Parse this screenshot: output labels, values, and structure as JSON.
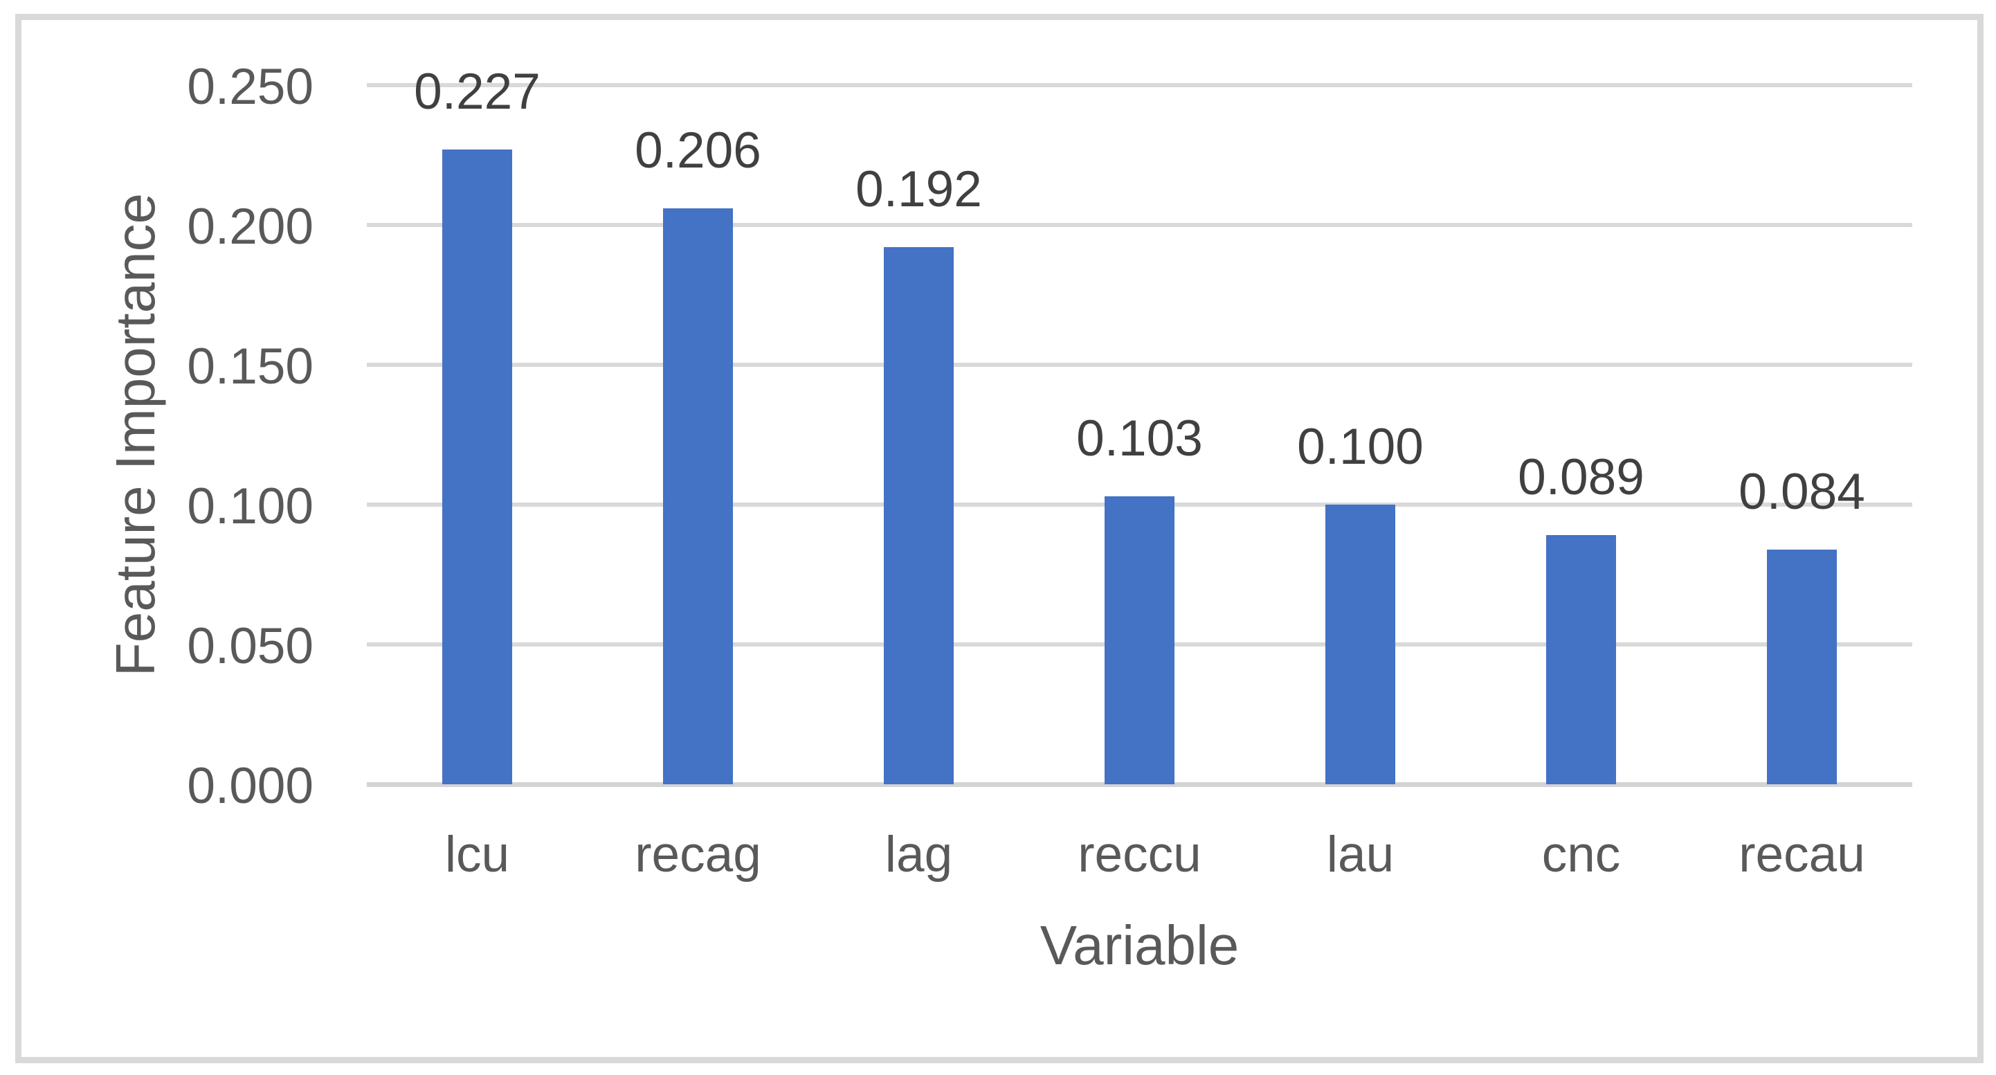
{
  "chart_data": {
    "type": "bar",
    "title": "",
    "xlabel": "Variable",
    "ylabel": "Feature Importance",
    "categories": [
      "lcu",
      "recag",
      "lag",
      "reccu",
      "lau",
      "cnc",
      "recau"
    ],
    "values": [
      0.227,
      0.206,
      0.192,
      0.103,
      0.1,
      0.089,
      0.084
    ],
    "data_labels": [
      "0.227",
      "0.206",
      "0.192",
      "0.103",
      "0.100",
      "0.089",
      "0.084"
    ],
    "ylim": [
      0,
      0.25
    ],
    "ytick_values": [
      0,
      0.05,
      0.1,
      0.15,
      0.2,
      0.25
    ],
    "ytick_labels": [
      "0.000",
      "0.050",
      "0.100",
      "0.150",
      "0.200",
      "0.250"
    ],
    "grid": "horizontal",
    "legend": "none",
    "colors": {
      "bar": "#4472C4",
      "gridline": "#D9D9D9",
      "axis_line": "#D4D4D4",
      "tick_text": "#595959",
      "axis_title_text": "#595959",
      "data_label_text": "#404040",
      "frame_border": "#D9D9D9",
      "background": "#FFFFFF"
    }
  }
}
